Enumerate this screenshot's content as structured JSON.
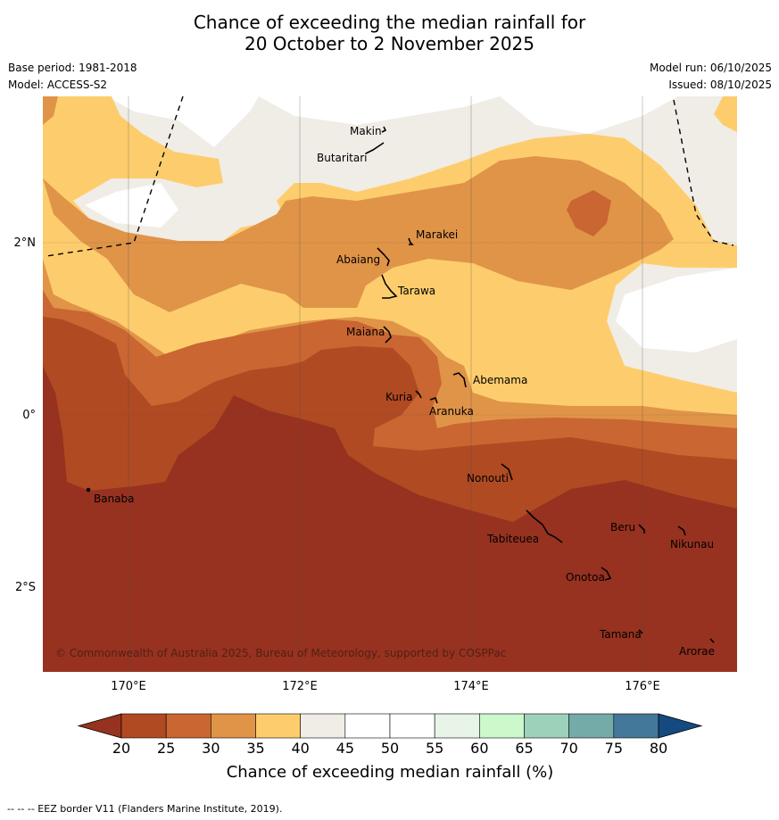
{
  "title_line1": "Chance of exceeding the median rainfall for",
  "title_line2": "20 October to 2 November 2025",
  "base_period": "Base period: 1981-2018",
  "model": "Model: ACCESS-S2",
  "model_run": "Model run: 06/10/2025",
  "issued": "Issued: 08/10/2025",
  "copyright": "© Commonwealth of Australia 2025, Bureau of Meteorology, supported by COSPPac",
  "lat_labels": [
    "2°N",
    "0°",
    "2°S"
  ],
  "lon_labels": [
    "170°E",
    "172°E",
    "174°E",
    "176°E"
  ],
  "places": {
    "makin": "Makin",
    "butaritari": "Butaritari",
    "marakei": "Marakei",
    "abaiang": "Abaiang",
    "tarawa": "Tarawa",
    "maiana": "Maiana",
    "abemama": "Abemama",
    "kuria": "Kuria",
    "aranuka": "Aranuka",
    "nonouti": "Nonouti",
    "banaba": "Banaba",
    "beru": "Beru",
    "nikunau": "Nikunau",
    "tabiteuea": "Tabiteuea",
    "onotoa": "Onotoa",
    "tamana": "Tamana",
    "arorae": "Arorae"
  },
  "colorbar": {
    "ticks": [
      "20",
      "25",
      "30",
      "35",
      "40",
      "45",
      "50",
      "55",
      "60",
      "65",
      "70",
      "75",
      "80"
    ],
    "colors": [
      "#b04a22",
      "#c96632",
      "#e09448",
      "#fdcd6d",
      "#f0ece6",
      "#ffffff",
      "#ffffff",
      "#e8f4e8",
      "#ccf8cc",
      "#9ed1ba",
      "#74aaa8",
      "#44789a"
    ],
    "under_color": "#973220",
    "over_color": "#154a80",
    "label": "Chance of exceeding median rainfall (%)"
  },
  "footer": "--  --  -- EEZ border V11 (Flanders Marine Institute, 2019)."
}
